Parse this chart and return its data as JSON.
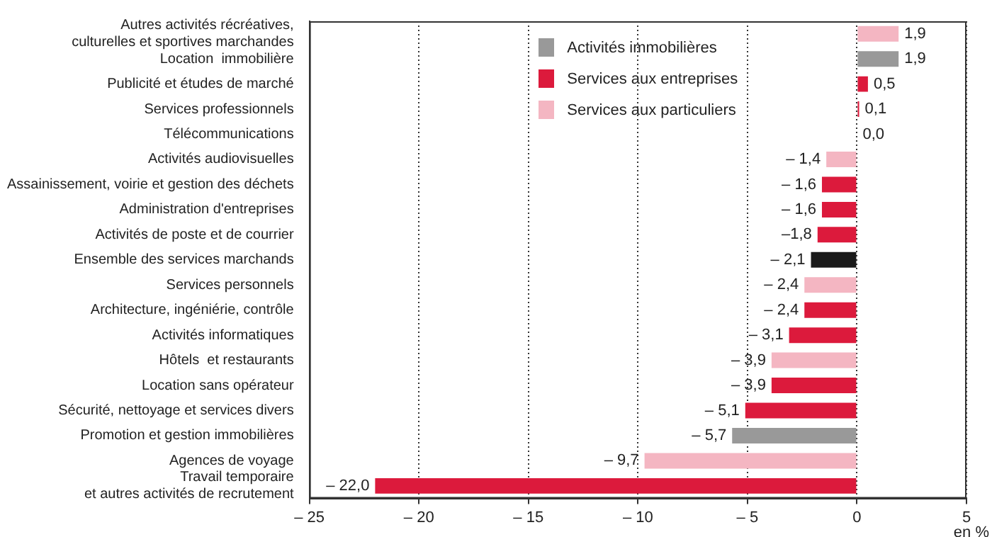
{
  "chart_data": {
    "type": "bar",
    "orientation": "horizontal",
    "xlabel": "en %",
    "categories": [
      "Autres activités récréatives,\nculturelles et sportives marchandes",
      "Location  immobilière",
      "Publicité et études de marché",
      "Services professionnels",
      "Télécommunications",
      "Activités audiovisuelles",
      "Assainissement, voirie et gestion des déchets",
      "Administration d'entreprises",
      "Activités de poste et de courrier",
      "Ensemble des services marchands",
      "Services personnels",
      "Architecture, ingéniérie, contrôle",
      "Activités informatiques",
      "Hôtels  et restaurants",
      "Location sans opérateur",
      "Sécurité, nettoyage et services divers",
      "Promotion et gestion immobilières",
      "Agences de voyage",
      "Travail temporaire\net autres activités de recrutement"
    ],
    "series": [
      {
        "name": "Activités immobilières",
        "color": "#999999",
        "values": [
          null,
          1.9,
          null,
          null,
          null,
          null,
          null,
          null,
          null,
          null,
          null,
          null,
          null,
          null,
          null,
          null,
          -5.7,
          null,
          null
        ],
        "value_labels": [
          null,
          "1,9",
          null,
          null,
          null,
          null,
          null,
          null,
          null,
          null,
          null,
          null,
          null,
          null,
          null,
          null,
          "– 5,7",
          null,
          null
        ]
      },
      {
        "name": "Services aux entreprises",
        "color": "#dc1a3c",
        "values": [
          null,
          null,
          0.5,
          0.1,
          0.0,
          null,
          -1.6,
          -1.6,
          -1.8,
          null,
          null,
          -2.4,
          -3.1,
          null,
          -3.9,
          -5.1,
          null,
          null,
          -22.0
        ],
        "value_labels": [
          null,
          null,
          "0,5",
          "0,1",
          "0,0",
          null,
          "– 1,6",
          "– 1,6",
          "–1,8",
          null,
          null,
          "– 2,4",
          "– 3,1",
          null,
          "– 3,9",
          "– 5,1",
          null,
          null,
          "– 22,0"
        ]
      },
      {
        "name": "Services aux particuliers",
        "color": "#f4b6c2",
        "values": [
          1.9,
          null,
          null,
          null,
          null,
          -1.4,
          null,
          null,
          null,
          null,
          -2.4,
          null,
          null,
          -3.9,
          null,
          null,
          null,
          -9.7,
          null
        ],
        "value_labels": [
          "1,9",
          null,
          null,
          null,
          null,
          "– 1,4",
          null,
          null,
          null,
          null,
          "– 2,4",
          null,
          null,
          "– 3,9",
          null,
          null,
          null,
          "– 9,7",
          null
        ]
      },
      {
        "color": "#1a1a1a",
        "values": [
          null,
          null,
          null,
          null,
          null,
          null,
          null,
          null,
          null,
          -2.1,
          null,
          null,
          null,
          null,
          null,
          null,
          null,
          null,
          null
        ],
        "value_labels": [
          null,
          null,
          null,
          null,
          null,
          null,
          null,
          null,
          null,
          "– 2,1",
          null,
          null,
          null,
          null,
          null,
          null,
          null,
          null,
          null
        ]
      }
    ],
    "xlim": [
      -25,
      5
    ],
    "xticks": [
      {
        "value": -25,
        "label": "– 25"
      },
      {
        "value": -20,
        "label": "– 20"
      },
      {
        "value": -15,
        "label": "– 15"
      },
      {
        "value": -10,
        "label": "– 10"
      },
      {
        "value": -5,
        "label": "– 5"
      },
      0,
      5
    ],
    "grid": "x",
    "legend": "top"
  }
}
